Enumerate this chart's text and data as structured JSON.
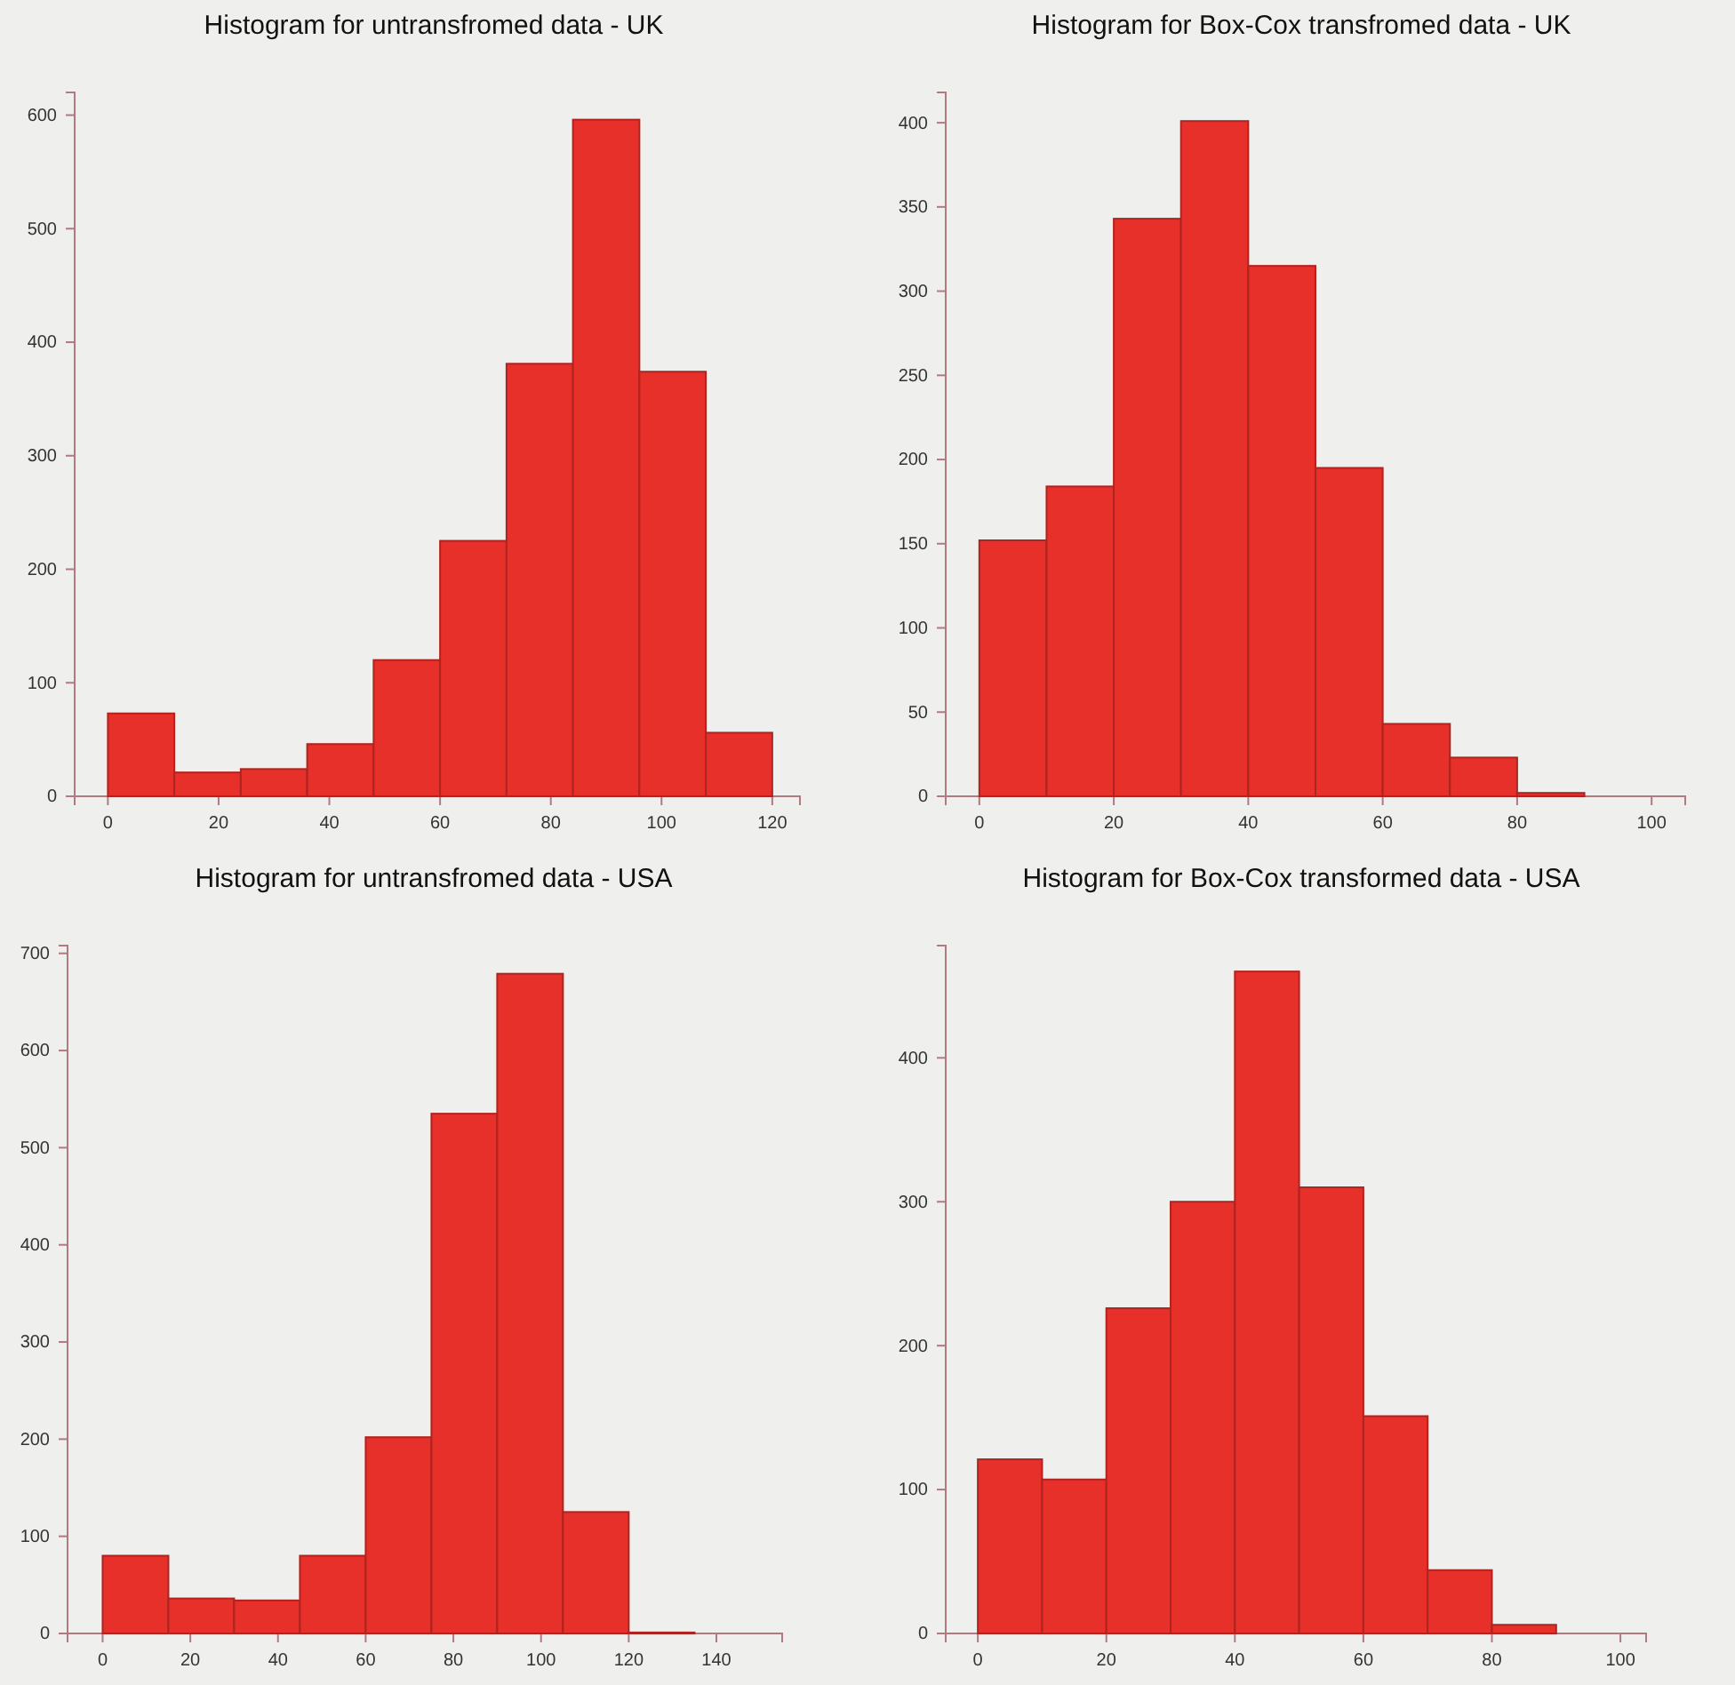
{
  "chart_data": [
    {
      "type": "histogram",
      "title": "Histogram for untransfromed data - UK",
      "bins": [
        0,
        12,
        24,
        36,
        48,
        60,
        72,
        84,
        96,
        108,
        120
      ],
      "values": [
        73,
        21,
        24,
        46,
        120,
        225,
        381,
        596,
        374,
        56
      ],
      "color": "#e8302a",
      "xlim": [
        -6,
        125
      ],
      "xticks": [
        0,
        20,
        40,
        60,
        80,
        100,
        120
      ],
      "ylim": [
        0,
        620
      ],
      "yticks": [
        0,
        100,
        200,
        300,
        400,
        500,
        600
      ]
    },
    {
      "type": "histogram",
      "title": "Histogram for Box-Cox transfromed data - UK",
      "bins": [
        0,
        10,
        20,
        30,
        40,
        50,
        60,
        70,
        80,
        90
      ],
      "values": [
        152,
        184,
        343,
        401,
        315,
        195,
        43,
        23,
        2
      ],
      "color": "#e8302a",
      "xlim": [
        -5,
        105
      ],
      "xticks": [
        0,
        20,
        40,
        60,
        80,
        100
      ],
      "ylim": [
        0,
        418
      ],
      "yticks": [
        0,
        50,
        100,
        150,
        200,
        250,
        300,
        350,
        400
      ]
    },
    {
      "type": "histogram",
      "title": "Histogram for untransfromed data - USA",
      "bins": [
        0,
        15,
        30,
        45,
        60,
        75,
        90,
        105,
        120,
        135
      ],
      "values": [
        80,
        36,
        34,
        80,
        202,
        535,
        679,
        125,
        1
      ],
      "color": "#e8302a",
      "xlim": [
        -8,
        155
      ],
      "xticks": [
        0,
        20,
        40,
        60,
        80,
        100,
        120,
        140
      ],
      "ylim": [
        0,
        708
      ],
      "yticks": [
        0,
        100,
        200,
        300,
        400,
        500,
        600,
        700
      ]
    },
    {
      "type": "histogram",
      "title": "Histogram for Box-Cox transformed data - USA",
      "bins": [
        0,
        10,
        20,
        30,
        40,
        50,
        60,
        70,
        80,
        90
      ],
      "values": [
        121,
        107,
        226,
        300,
        460,
        310,
        151,
        44,
        6
      ],
      "color": "#e8302a",
      "xlim": [
        -5,
        104
      ],
      "xticks": [
        0,
        20,
        40,
        60,
        80,
        100
      ],
      "ylim": [
        0,
        478
      ],
      "yticks": [
        0,
        100,
        200,
        300,
        400
      ]
    }
  ]
}
